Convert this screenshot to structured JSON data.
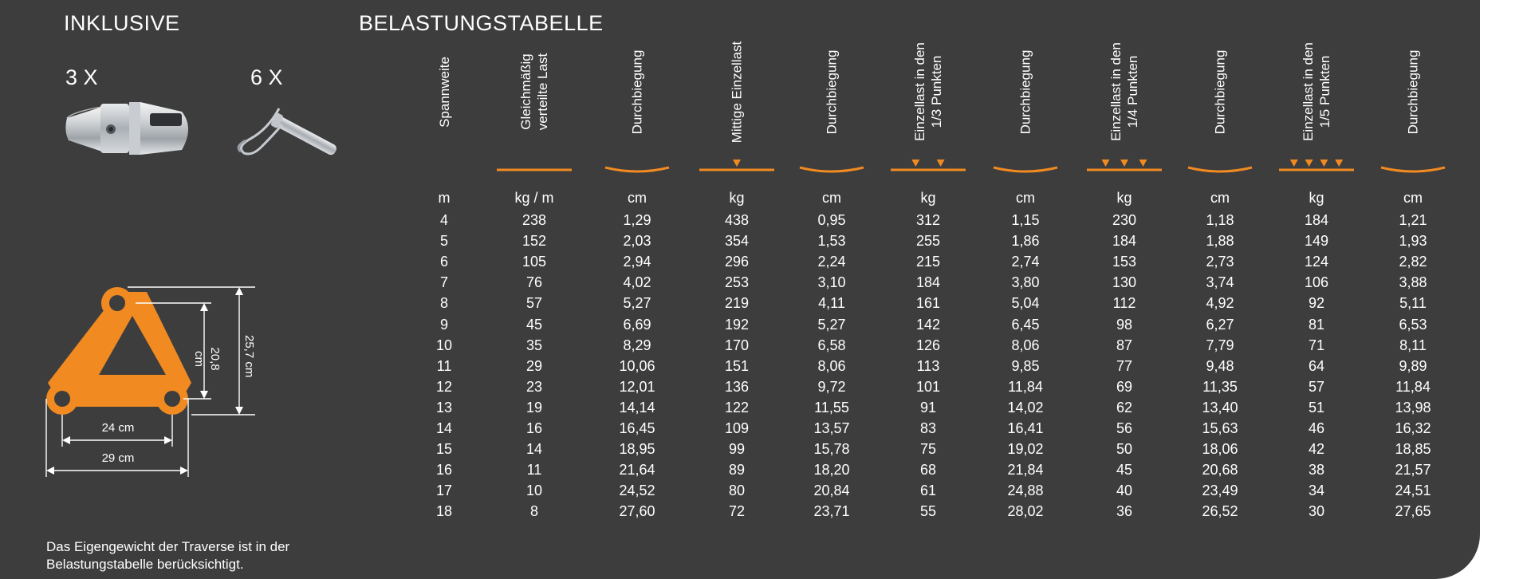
{
  "inclusive": {
    "title": "INKLUSIVE",
    "item1_qty": "3 X",
    "item1_icon": "conical-connector-icon",
    "item2_qty": "6 X",
    "item2_icon": "pin-with-clip-icon"
  },
  "profile": {
    "icon": "triangle-truss-profile-icon",
    "color": "#f08a21",
    "dim_height_inner": "20,8 cm",
    "dim_height_outer": "25,7 cm",
    "dim_width_inner": "24 cm",
    "dim_width_outer": "29 cm"
  },
  "note": {
    "line1": "Das Eigengewicht der Traverse ist in der",
    "line2": "Belastungstabelle berücksichtigt."
  },
  "table": {
    "title": "BELASTUNGSTABELLE",
    "accent_color": "#f08a21",
    "headers": [
      {
        "lines": [
          "Spannweite"
        ],
        "unit": "m",
        "marker": "none"
      },
      {
        "lines": [
          "Gleichmäßig",
          "verteilte Last"
        ],
        "unit": "kg / m",
        "marker": "line"
      },
      {
        "lines": [
          "Durchbiegung"
        ],
        "unit": "cm",
        "marker": "curve"
      },
      {
        "lines": [
          "Mittige Einzellast"
        ],
        "unit": "kg",
        "marker": "arrows-1"
      },
      {
        "lines": [
          "Durchbiegung"
        ],
        "unit": "cm",
        "marker": "curve"
      },
      {
        "lines": [
          "Einzellast in den",
          "1/3 Punkten"
        ],
        "unit": "kg",
        "marker": "arrows-2"
      },
      {
        "lines": [
          "Durchbiegung"
        ],
        "unit": "cm",
        "marker": "curve"
      },
      {
        "lines": [
          "Einzellast in den",
          "1/4 Punkten"
        ],
        "unit": "kg",
        "marker": "arrows-3"
      },
      {
        "lines": [
          "Durchbiegung"
        ],
        "unit": "cm",
        "marker": "curve"
      },
      {
        "lines": [
          "Einzellast in den",
          "1/5 Punkten"
        ],
        "unit": "kg",
        "marker": "arrows-4"
      },
      {
        "lines": [
          "Durchbiegung"
        ],
        "unit": "cm",
        "marker": "curve"
      }
    ],
    "rows": [
      [
        "4",
        "238",
        "1,29",
        "438",
        "0,95",
        "312",
        "1,15",
        "230",
        "1,18",
        "184",
        "1,21"
      ],
      [
        "5",
        "152",
        "2,03",
        "354",
        "1,53",
        "255",
        "1,86",
        "184",
        "1,88",
        "149",
        "1,93"
      ],
      [
        "6",
        "105",
        "2,94",
        "296",
        "2,24",
        "215",
        "2,74",
        "153",
        "2,73",
        "124",
        "2,82"
      ],
      [
        "7",
        "76",
        "4,02",
        "253",
        "3,10",
        "184",
        "3,80",
        "130",
        "3,74",
        "106",
        "3,88"
      ],
      [
        "8",
        "57",
        "5,27",
        "219",
        "4,11",
        "161",
        "5,04",
        "112",
        "4,92",
        "92",
        "5,11"
      ],
      [
        "9",
        "45",
        "6,69",
        "192",
        "5,27",
        "142",
        "6,45",
        "98",
        "6,27",
        "81",
        "6,53"
      ],
      [
        "10",
        "35",
        "8,29",
        "170",
        "6,58",
        "126",
        "8,06",
        "87",
        "7,79",
        "71",
        "8,11"
      ],
      [
        "11",
        "29",
        "10,06",
        "151",
        "8,06",
        "113",
        "9,85",
        "77",
        "9,48",
        "64",
        "9,89"
      ],
      [
        "12",
        "23",
        "12,01",
        "136",
        "9,72",
        "101",
        "11,84",
        "69",
        "11,35",
        "57",
        "11,84"
      ],
      [
        "13",
        "19",
        "14,14",
        "122",
        "11,55",
        "91",
        "14,02",
        "62",
        "13,40",
        "51",
        "13,98"
      ],
      [
        "14",
        "16",
        "16,45",
        "109",
        "13,57",
        "83",
        "16,41",
        "56",
        "15,63",
        "46",
        "16,32"
      ],
      [
        "15",
        "14",
        "18,95",
        "99",
        "15,78",
        "75",
        "19,02",
        "50",
        "18,06",
        "42",
        "18,85"
      ],
      [
        "16",
        "11",
        "21,64",
        "89",
        "18,20",
        "68",
        "21,84",
        "45",
        "20,68",
        "38",
        "21,57"
      ],
      [
        "17",
        "10",
        "24,52",
        "80",
        "20,84",
        "61",
        "24,88",
        "40",
        "23,49",
        "34",
        "24,51"
      ],
      [
        "18",
        "8",
        "27,60",
        "72",
        "23,71",
        "55",
        "28,02",
        "36",
        "26,52",
        "30",
        "27,65"
      ]
    ]
  }
}
